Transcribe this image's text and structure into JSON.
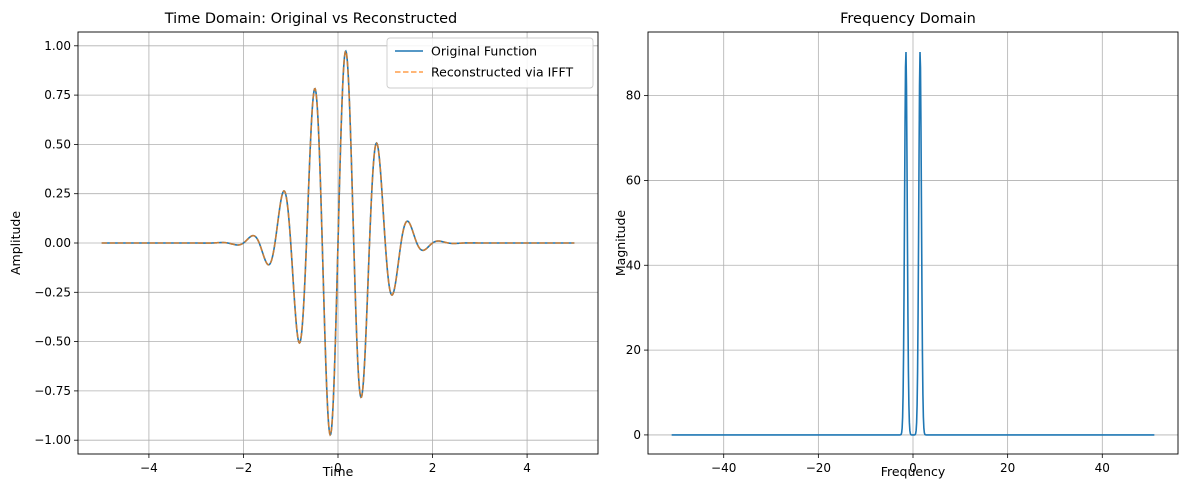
{
  "chart_data": [
    {
      "type": "line",
      "title": "Time Domain: Original vs Reconstructed",
      "xlabel": "Time",
      "ylabel": "Amplitude",
      "xlim": [
        -5.5,
        5.5
      ],
      "ylim": [
        -1.07,
        1.07
      ],
      "xticks": [
        -4,
        -2,
        0,
        2,
        4
      ],
      "xtick_labels": [
        "−4",
        "−2",
        "0",
        "2",
        "4"
      ],
      "yticks": [
        -1.0,
        -0.75,
        -0.5,
        -0.25,
        0.0,
        0.25,
        0.5,
        0.75,
        1.0
      ],
      "ytick_labels": [
        "−1.00",
        "−0.75",
        "−0.50",
        "−0.25",
        "0.00",
        "0.25",
        "0.50",
        "0.75",
        "1.00"
      ],
      "grid": true,
      "legend_position": "top-right",
      "signal": {
        "form": "exp(-t^2) * sin(2*pi*1.5*t)",
        "t_start": -5,
        "t_end": 5,
        "samples": 1000
      },
      "series": [
        {
          "name": "Original Function",
          "color": "#1f77b4",
          "style": "solid"
        },
        {
          "name": "Reconstructed via IFFT",
          "color": "#ff7f0e",
          "style": "dashed"
        }
      ]
    },
    {
      "type": "line",
      "title": "Frequency Domain",
      "xlabel": "Frequency",
      "ylabel": "Magnitude",
      "xlim": [
        -56,
        56
      ],
      "ylim": [
        -4.5,
        95
      ],
      "xticks": [
        -40,
        -20,
        0,
        20,
        40
      ],
      "xtick_labels": [
        "−40",
        "−20",
        "0",
        "20",
        "40"
      ],
      "yticks": [
        0,
        20,
        40,
        60,
        80
      ],
      "ytick_labels": [
        "0",
        "20",
        "40",
        "60",
        "80"
      ],
      "grid": true,
      "spectrum": {
        "f_start": -51,
        "f_end": 51,
        "peak_frequencies": [
          -1.5,
          1.5
        ],
        "peak_magnitude": 90.5
      },
      "series": [
        {
          "color": "#1f77b4",
          "style": "solid"
        }
      ]
    }
  ]
}
